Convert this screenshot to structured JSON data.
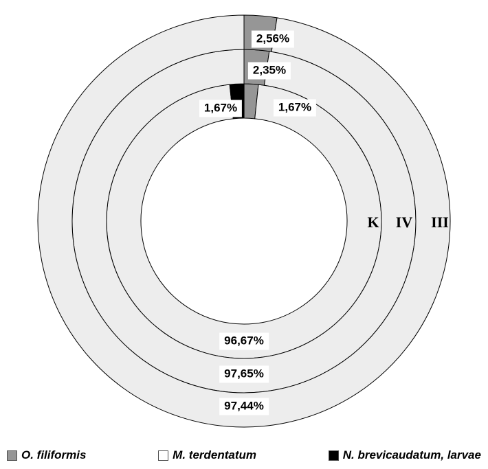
{
  "chart_data": {
    "type": "pie",
    "variant": "concentric-donut",
    "start_angle": 0,
    "direction": "clockwise",
    "legend_position": "bottom",
    "rings": [
      {
        "label": "K",
        "segments": [
          {
            "name": "O. filiformis",
            "value": 1.67,
            "display": "1,67%",
            "color": "#969696"
          },
          {
            "name": "M. terdentatum",
            "value": 96.67,
            "display": "96,67%",
            "color": "#ededed"
          },
          {
            "name": "N. brevicaudatum, larvae",
            "value": 1.67,
            "display": "1,67%",
            "color": "#000000"
          }
        ]
      },
      {
        "label": "IV",
        "segments": [
          {
            "name": "O. filiformis",
            "value": 2.35,
            "display": "2,35%",
            "color": "#969696"
          },
          {
            "name": "M. terdentatum",
            "value": 97.65,
            "display": "97,65%",
            "color": "#ededed"
          }
        ]
      },
      {
        "label": "III",
        "segments": [
          {
            "name": "O. filiformis",
            "value": 2.56,
            "display": "2,56%",
            "color": "#969696"
          },
          {
            "name": "M. terdentatum",
            "value": 97.44,
            "display": "97,44%",
            "color": "#ededed"
          }
        ]
      }
    ],
    "legend": [
      {
        "label": "O. filiformis",
        "color": "#969696"
      },
      {
        "label": "M. terdentatum",
        "color": "#ffffff"
      },
      {
        "label": "N. brevicaudatum, larvae",
        "color": "#000000"
      }
    ]
  }
}
